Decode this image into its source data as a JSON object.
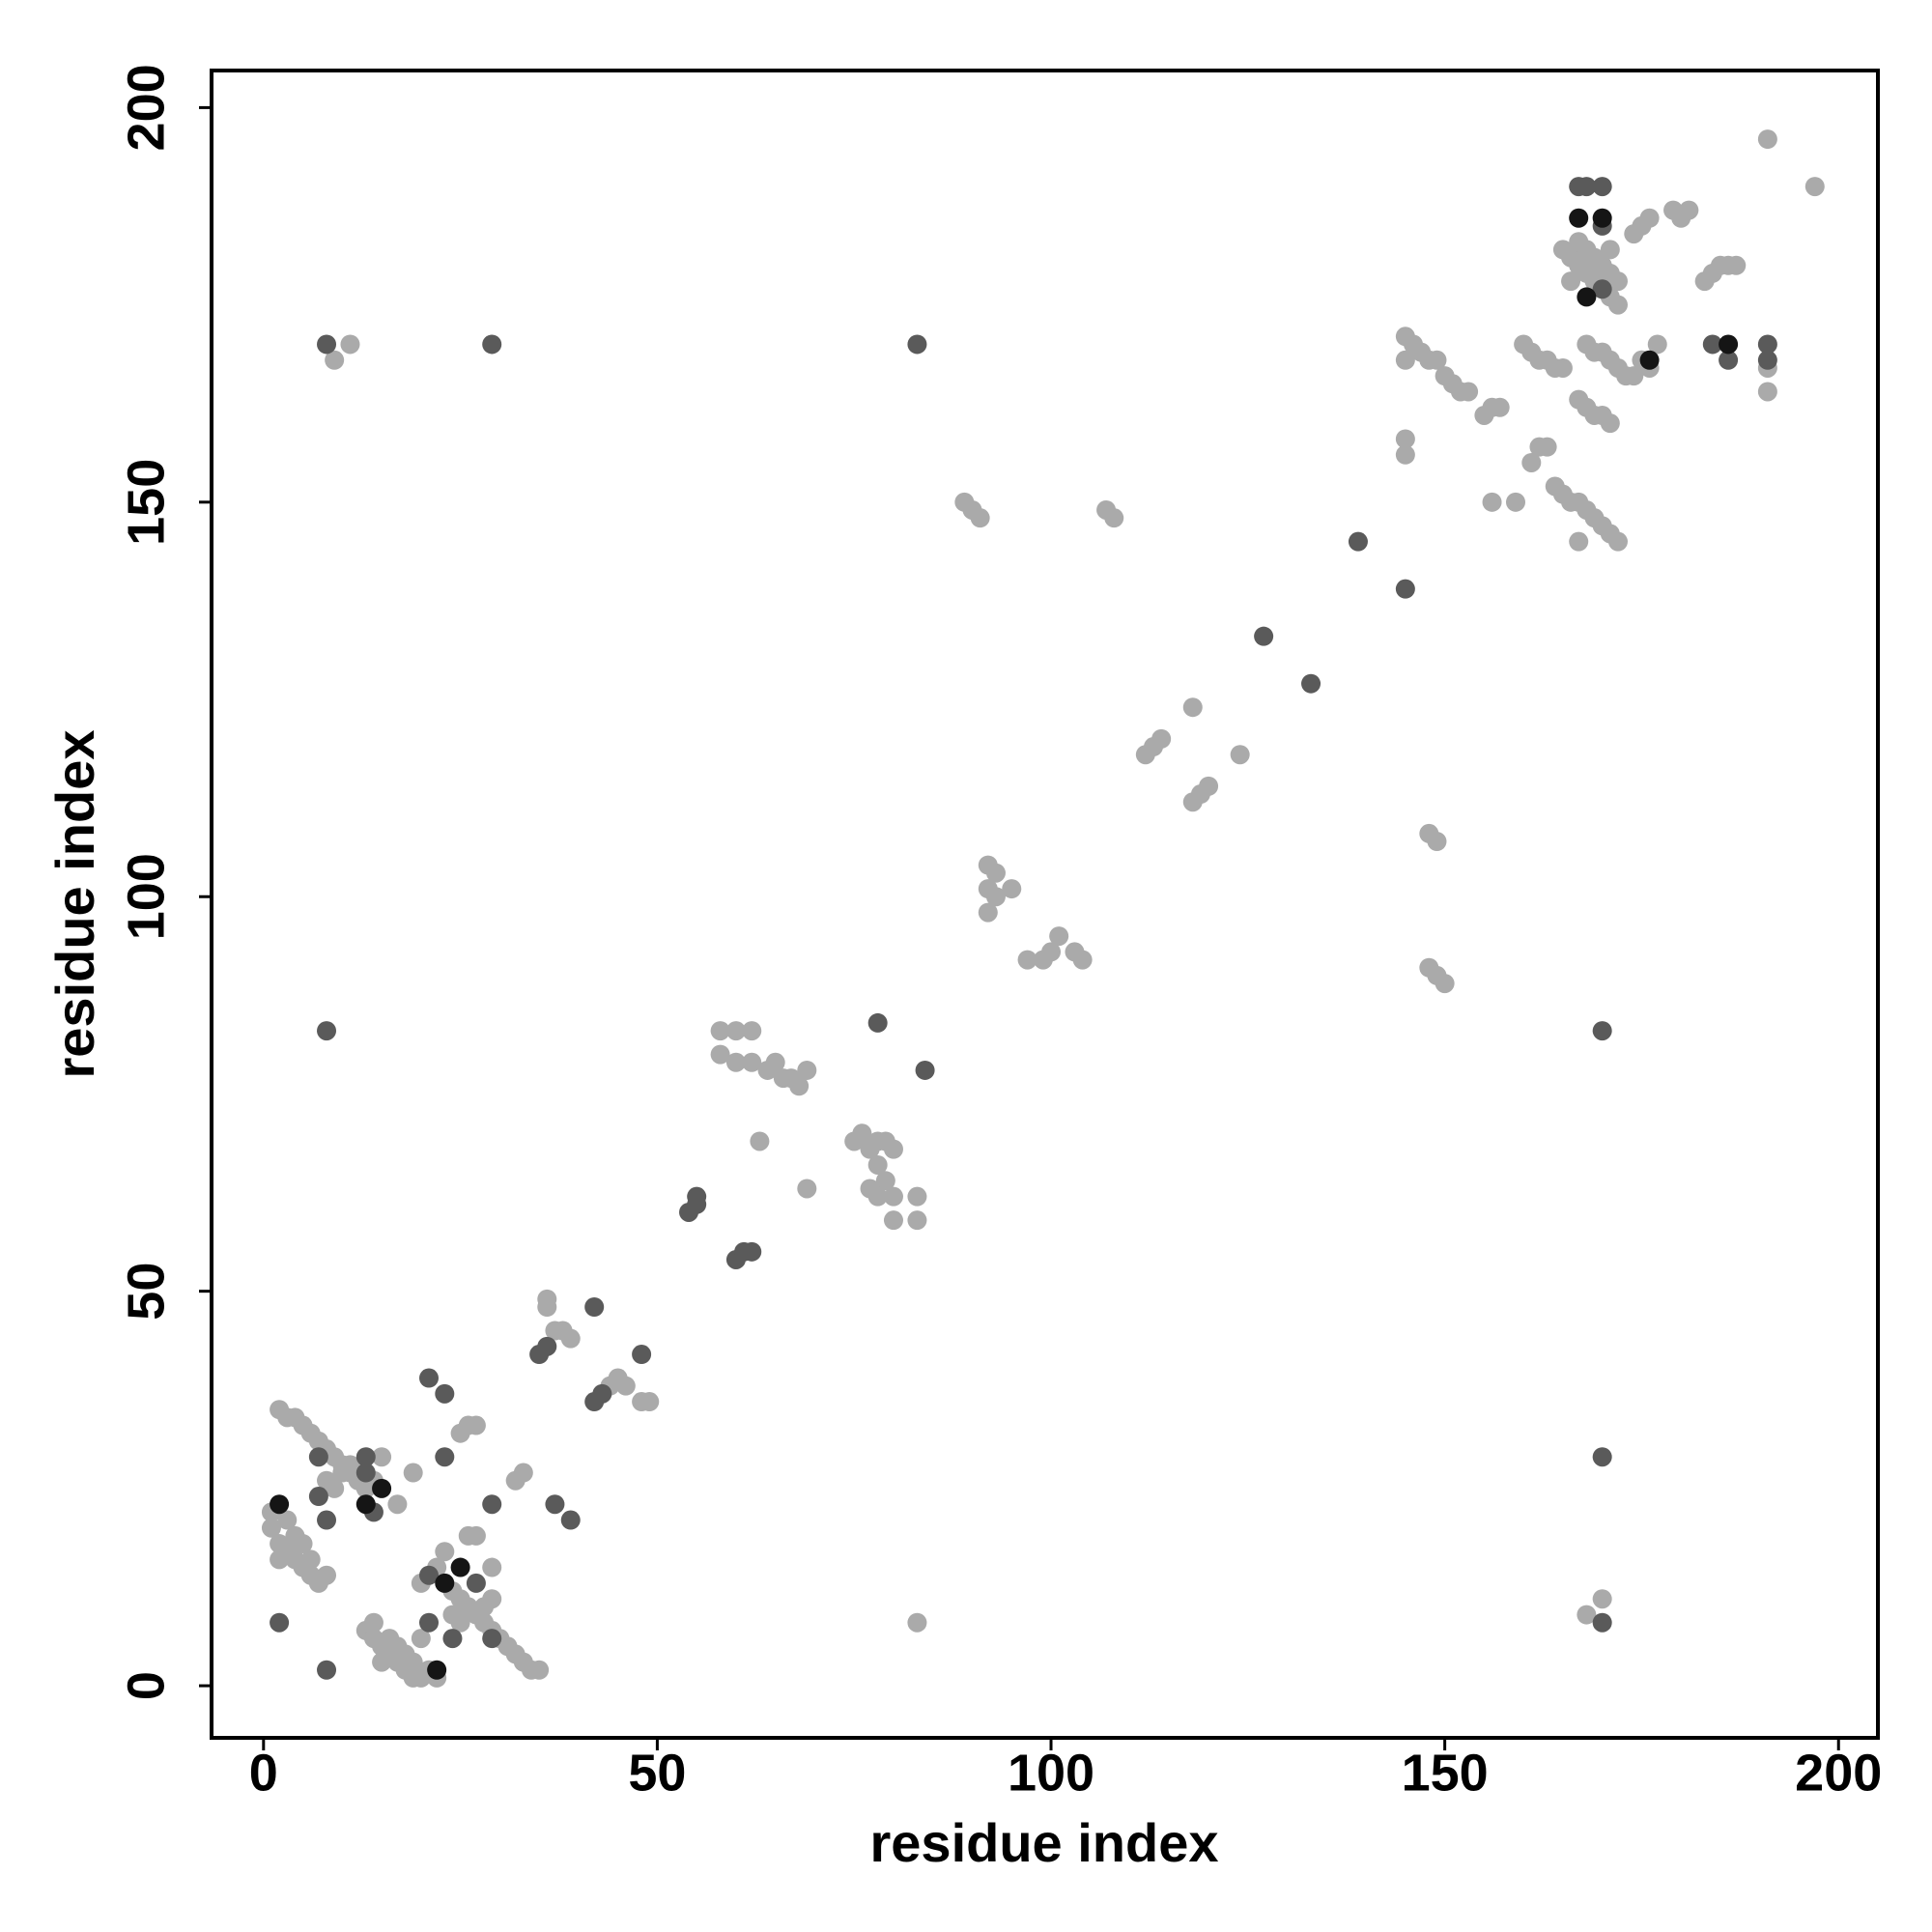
{
  "chart_data": {
    "type": "scatter",
    "xlabel": "residue index",
    "ylabel": "residue index",
    "xlim": [
      -6.6,
      205
    ],
    "ylim": [
      -6.6,
      204.7
    ],
    "xticks": [
      0,
      50,
      100,
      150,
      200
    ],
    "yticks": [
      0,
      50,
      100,
      150,
      200
    ],
    "series": [
      {
        "color": "#aaaaaa",
        "x": [
          191,
          197,
          174,
          175,
          176,
          180,
          181,
          179,
          165,
          166,
          167,
          168,
          169,
          170,
          171,
          172,
          166,
          167,
          168,
          169,
          170,
          171,
          172,
          171,
          183,
          184,
          185,
          186,
          187,
          145,
          146,
          147,
          148,
          149,
          150,
          151,
          152,
          153,
          145,
          160,
          161,
          162,
          163,
          164,
          165,
          168,
          169,
          170,
          171,
          172,
          173,
          174,
          175,
          176,
          177,
          191,
          191,
          167,
          168,
          169,
          170,
          171,
          162,
          161,
          163,
          155,
          156,
          157,
          164,
          165,
          166,
          167,
          168,
          169,
          170,
          171,
          172,
          167,
          156,
          159,
          145,
          145,
          118,
          112,
          113,
          114,
          118,
          119,
          120,
          124,
          89,
          90,
          91,
          107,
          108,
          92,
          93,
          92,
          93,
          95,
          92,
          97,
          99,
          100,
          101,
          103,
          104,
          148,
          149,
          148,
          149,
          150,
          168,
          170,
          9,
          11,
          83,
          58,
          60,
          62,
          58,
          60,
          62,
          64,
          66,
          68,
          69,
          65,
          67,
          63,
          69,
          75,
          76,
          77,
          78,
          79,
          80,
          78,
          79,
          80,
          77,
          78,
          80,
          83,
          83,
          36,
          36,
          37,
          38,
          39,
          44,
          45,
          46,
          48,
          49,
          2,
          3,
          4,
          5,
          6,
          7,
          8,
          9,
          10,
          11,
          12,
          13,
          8,
          9,
          10,
          11,
          1,
          1,
          2,
          3,
          4,
          5,
          6,
          7,
          8,
          2,
          3,
          4,
          5,
          6,
          14,
          15,
          17,
          19,
          26,
          27,
          25,
          32,
          33,
          13,
          14,
          15,
          16,
          17,
          18,
          19,
          20,
          21,
          22,
          14,
          15,
          16,
          17,
          18,
          19,
          20,
          22,
          23,
          24,
          25,
          26,
          27,
          28,
          29,
          30,
          31,
          32,
          33,
          34,
          35,
          24,
          25,
          28,
          29,
          29,
          26,
          27,
          23,
          20
        ],
        "values": [
          196,
          190,
          184,
          185,
          186,
          186,
          187,
          187,
          182,
          181,
          180,
          179,
          178,
          177,
          176,
          175,
          178,
          183,
          182,
          181,
          180,
          179,
          178,
          182,
          178,
          179,
          180,
          180,
          180,
          171,
          170,
          169,
          168,
          168,
          166,
          165,
          164,
          164,
          168,
          170,
          169,
          168,
          168,
          167,
          167,
          170,
          169,
          169,
          168,
          167,
          166,
          166,
          168,
          167,
          170,
          167,
          164,
          163,
          162,
          161,
          161,
          160,
          157,
          155,
          157,
          161,
          162,
          162,
          152,
          151,
          150,
          150,
          149,
          148,
          147,
          146,
          145,
          145,
          150,
          150,
          158,
          156,
          124,
          118,
          119,
          120,
          112,
          113,
          114,
          118,
          150,
          149,
          148,
          149,
          148,
          104,
          103,
          101,
          100,
          101,
          98,
          92,
          92,
          93,
          95,
          93,
          92,
          108,
          107,
          91,
          90,
          89,
          9,
          11,
          168,
          170,
          8,
          83,
          83,
          83,
          80,
          79,
          79,
          78,
          77,
          76,
          78,
          79,
          77,
          69,
          63,
          69,
          70,
          68,
          66,
          64,
          62,
          69,
          69,
          68,
          63,
          62,
          59,
          59,
          62,
          49,
          48,
          45,
          45,
          44,
          38,
          39,
          38,
          36,
          36,
          35,
          34,
          34,
          33,
          32,
          31,
          30,
          29,
          28,
          27,
          26,
          25,
          26,
          25,
          27,
          28,
          22,
          20,
          18,
          17,
          16,
          15,
          14,
          13,
          14,
          16,
          21,
          19,
          18,
          16,
          26,
          29,
          23,
          27,
          33,
          33,
          32,
          26,
          27,
          7,
          6,
          5,
          4,
          3,
          2,
          1,
          1,
          2,
          1,
          8,
          3,
          6,
          5,
          4,
          3,
          6,
          15,
          13,
          12,
          11,
          10,
          9,
          8,
          7,
          6,
          5,
          4,
          3,
          2,
          2,
          9,
          8,
          10,
          11,
          15,
          19,
          19,
          17,
          13
        ]
      },
      {
        "color": "#5a5a5a",
        "x": [
          170,
          167,
          168,
          170,
          170,
          184,
          186,
          191,
          191,
          139,
          145,
          127,
          133,
          170,
          170,
          170,
          83,
          8,
          29,
          8,
          78,
          84,
          54,
          55,
          55,
          60,
          61,
          62,
          35,
          36,
          42,
          48,
          42,
          43,
          13,
          7,
          8,
          13,
          21,
          23,
          23,
          29,
          37,
          39,
          21,
          24,
          27,
          21,
          2,
          8,
          29,
          7,
          14
        ],
        "values": [
          190,
          190,
          190,
          185,
          177,
          170,
          168,
          170,
          168,
          145,
          139,
          133,
          127,
          83,
          29,
          8,
          170,
          170,
          170,
          83,
          84,
          78,
          60,
          61,
          62,
          54,
          55,
          55,
          42,
          43,
          48,
          42,
          36,
          37,
          29,
          24,
          21,
          27,
          39,
          37,
          29,
          23,
          23,
          21,
          8,
          6,
          13,
          14,
          8,
          2,
          6,
          29,
          22
        ]
      },
      {
        "color": "#151515",
        "x": [
          2,
          13,
          15,
          22,
          25,
          23,
          168,
          170,
          167,
          186,
          176
        ],
        "values": [
          23,
          23,
          25,
          2,
          15,
          13,
          176,
          186,
          186,
          170,
          168
        ]
      }
    ]
  }
}
